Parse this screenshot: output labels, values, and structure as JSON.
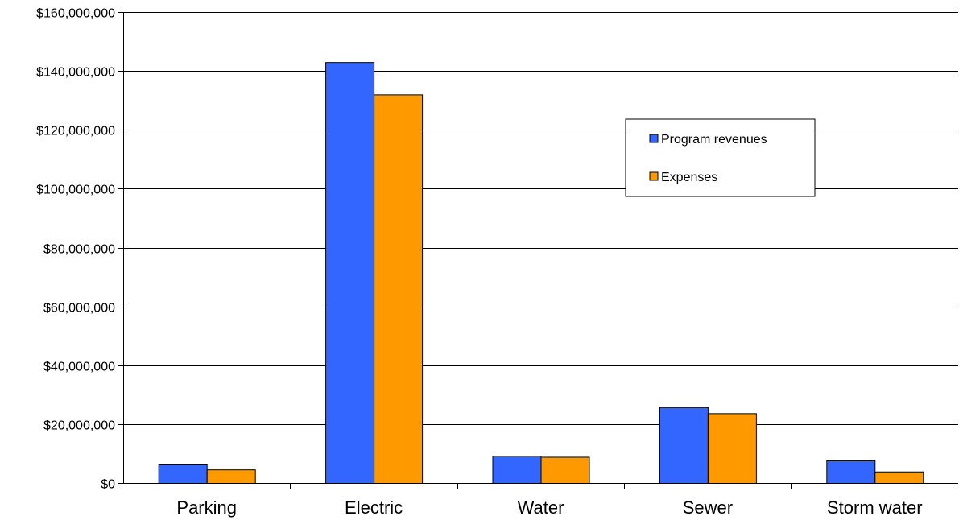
{
  "chart_data": {
    "type": "bar",
    "title": "",
    "xlabel": "",
    "ylabel": "",
    "categories": [
      "Parking",
      "Electric",
      "Water",
      "Sewer",
      "Storm water"
    ],
    "series": [
      {
        "name": "Program revenues",
        "color": "#3366ff",
        "values": [
          6300000,
          143000000,
          9300000,
          25800000,
          7700000
        ]
      },
      {
        "name": "Expenses",
        "color": "#ff9900",
        "values": [
          4600000,
          132000000,
          8900000,
          23700000,
          3900000
        ]
      }
    ],
    "ylim": [
      0,
      160000000
    ],
    "yticks": [
      0,
      20000000,
      40000000,
      60000000,
      80000000,
      100000000,
      120000000,
      140000000,
      160000000
    ],
    "ytick_labels": [
      "$0",
      "$20,000,000",
      "$40,000,000",
      "$60,000,000",
      "$80,000,000",
      "$100,000,000",
      "$120,000,000",
      "$140,000,000",
      "$160,000,000"
    ],
    "grid": true,
    "legend_position": "upper-right"
  }
}
